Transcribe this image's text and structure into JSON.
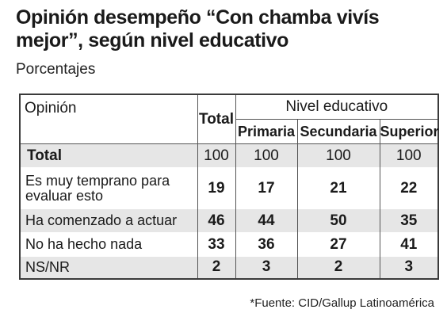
{
  "title": "Opinión desempeño “Con chamba vivís mejor”, según nivel educativo",
  "subtitle": "Porcentajes",
  "table": {
    "header_opinion": "Opinión",
    "header_total": "Total",
    "header_group": "Nivel educativo",
    "header_primaria": "Primaria",
    "header_secundaria": "Secundaria",
    "header_superior": "Superior",
    "rows": [
      {
        "label": "Total",
        "total": "100",
        "primaria": "100",
        "secundaria": "100",
        "superior": "100"
      },
      {
        "label": "Es muy temprano para evaluar esto",
        "total": "19",
        "primaria": "17",
        "secundaria": "21",
        "superior": "22"
      },
      {
        "label": "Ha comenzado a actuar",
        "total": "46",
        "primaria": "44",
        "secundaria": "50",
        "superior": "35"
      },
      {
        "label": "No ha hecho nada",
        "total": "33",
        "primaria": "36",
        "secundaria": "27",
        "superior": "41"
      },
      {
        "label": "NS/NR",
        "total": "2",
        "primaria": "3",
        "secundaria": "2",
        "superior": "3"
      }
    ]
  },
  "source": "*Fuente: CID/Gallup Latinoamérica",
  "colors": {
    "shade": "#e6e6e6",
    "border": "#3a3a3a",
    "text": "#1a1a1a"
  }
}
